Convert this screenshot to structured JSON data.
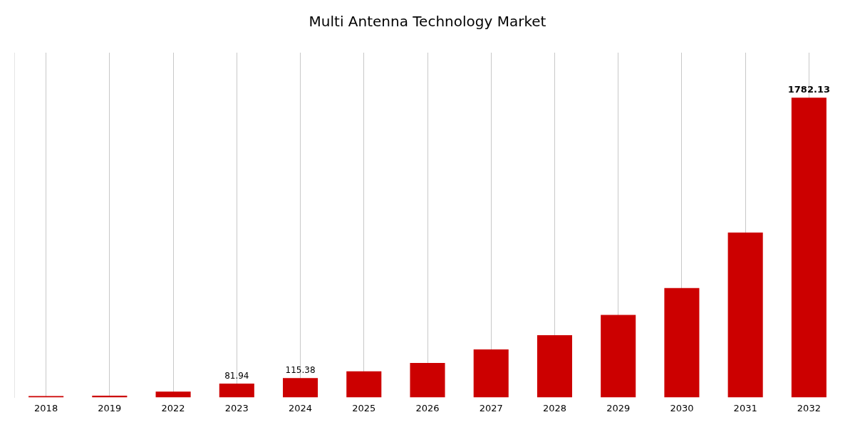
{
  "chart_data": {
    "type": "bar",
    "title": "Multi Antenna Technology Market",
    "categories": [
      "2018",
      "2019",
      "2022",
      "2023",
      "2024",
      "2025",
      "2026",
      "2027",
      "2028",
      "2029",
      "2030",
      "2031",
      "2032"
    ],
    "values": [
      8.0,
      10.0,
      35.0,
      81.94,
      115.38,
      155.0,
      205.0,
      285.0,
      370.0,
      490.0,
      650.0,
      980.0,
      1782.13
    ],
    "value_labels": [
      null,
      null,
      null,
      "81.94",
      "115.38",
      null,
      null,
      null,
      null,
      null,
      null,
      null,
      "1782.13"
    ],
    "color": "#cc0000",
    "ylim": [
      0,
      2049.4495
    ],
    "grid": "x",
    "tick_labels": "x"
  }
}
